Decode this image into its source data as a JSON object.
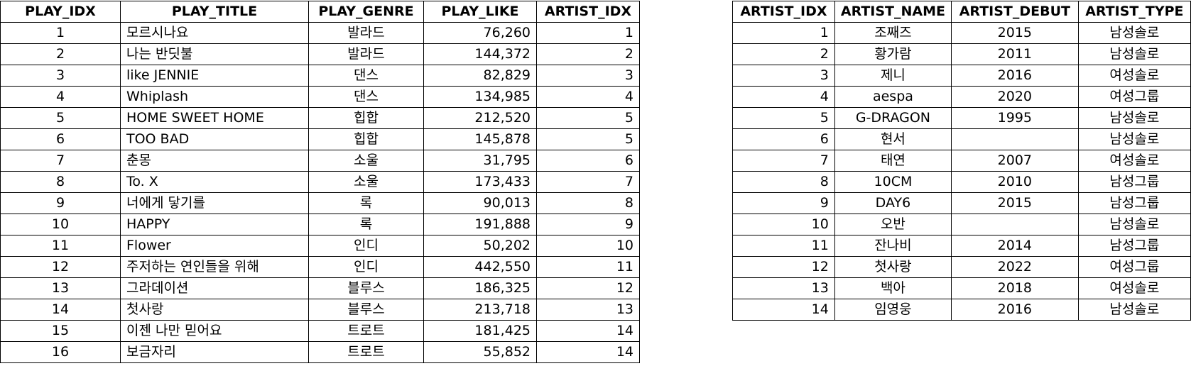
{
  "play_table": {
    "columns": [
      "PLAY_IDX",
      "PLAY_TITLE",
      "PLAY_GENRE",
      "PLAY_LIKE",
      "ARTIST_IDX"
    ],
    "rows": [
      [
        "1",
        "모르시나요",
        "발라드",
        "76,260",
        "1"
      ],
      [
        "2",
        "나는 반딧불",
        "발라드",
        "144,372",
        "2"
      ],
      [
        "3",
        "like JENNIE",
        "댄스",
        "82,829",
        "3"
      ],
      [
        "4",
        "Whiplash",
        "댄스",
        "134,985",
        "4"
      ],
      [
        "5",
        "HOME SWEET HOME",
        "힙합",
        "212,520",
        "5"
      ],
      [
        "6",
        "TOO BAD",
        "힙합",
        "145,878",
        "5"
      ],
      [
        "7",
        "춘몽",
        "소울",
        "31,795",
        "6"
      ],
      [
        "8",
        "To. X",
        "소울",
        "173,433",
        "7"
      ],
      [
        "9",
        "너에게 닿기를",
        "록",
        "90,013",
        "8"
      ],
      [
        "10",
        "HAPPY",
        "록",
        "191,888",
        "9"
      ],
      [
        "11",
        "Flower",
        "인디",
        "50,202",
        "10"
      ],
      [
        "12",
        "주저하는 연인들을 위해",
        "인디",
        "442,550",
        "11"
      ],
      [
        "13",
        "그라데이션",
        "블루스",
        "186,325",
        "12"
      ],
      [
        "14",
        "첫사랑",
        "블루스",
        "213,718",
        "13"
      ],
      [
        "15",
        "이젠 나만 믿어요",
        "트로트",
        "181,425",
        "14"
      ],
      [
        "16",
        "보금자리",
        "트로트",
        "55,852",
        "14"
      ]
    ]
  },
  "artist_table": {
    "columns": [
      "ARTIST_IDX",
      "ARTIST_NAME",
      "ARTIST_DEBUT",
      "ARTIST_TYPE"
    ],
    "rows": [
      [
        "1",
        "조째즈",
        "2015",
        "남성솔로"
      ],
      [
        "2",
        "황가람",
        "2011",
        "남성솔로"
      ],
      [
        "3",
        "제니",
        "2016",
        "여성솔로"
      ],
      [
        "4",
        "aespa",
        "2020",
        "여성그룹"
      ],
      [
        "5",
        "G-DRAGON",
        "1995",
        "남성솔로"
      ],
      [
        "6",
        "현서",
        "",
        "남성솔로"
      ],
      [
        "7",
        "태연",
        "2007",
        "여성솔로"
      ],
      [
        "8",
        "10CM",
        "2010",
        "남성그룹"
      ],
      [
        "9",
        "DAY6",
        "2015",
        "남성그룹"
      ],
      [
        "10",
        "오반",
        "",
        "남성솔로"
      ],
      [
        "11",
        "잔나비",
        "2014",
        "남성그룹"
      ],
      [
        "12",
        "첫사랑",
        "2022",
        "여성그룹"
      ],
      [
        "13",
        "백아",
        "2018",
        "여성솔로"
      ],
      [
        "14",
        "임영웅",
        "2016",
        "남성솔로"
      ]
    ]
  }
}
